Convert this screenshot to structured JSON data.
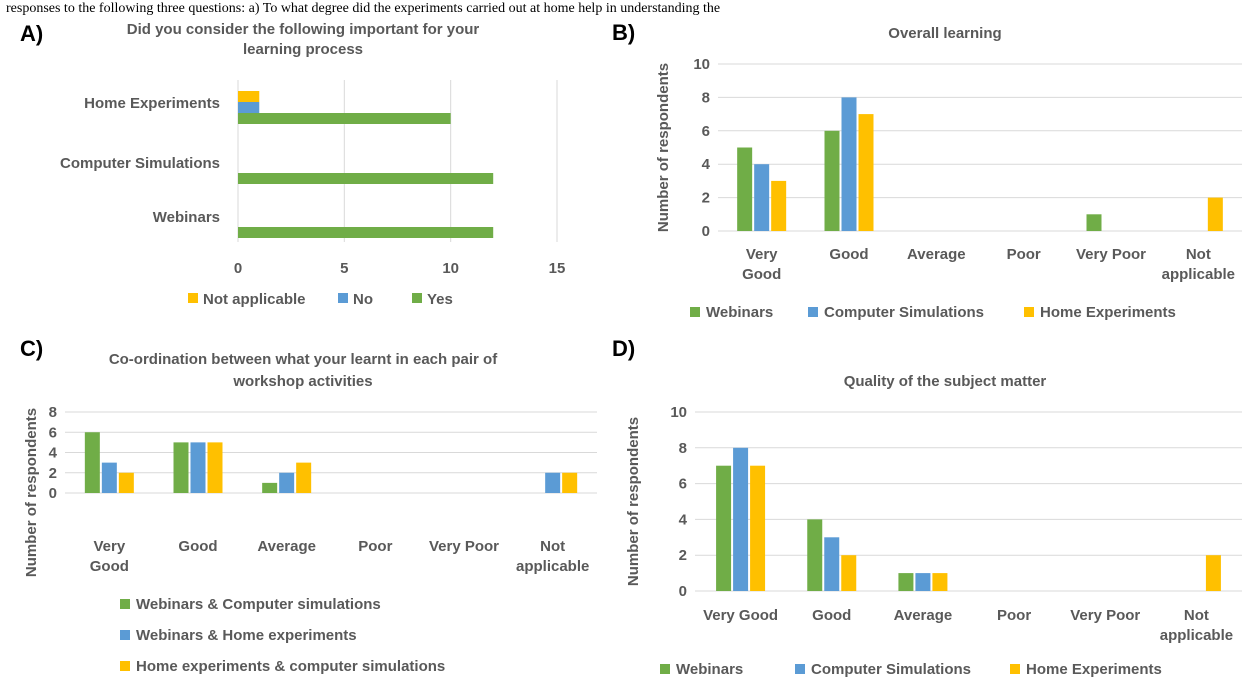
{
  "top_caption": "responses to the following three questions: a) To what degree did the experiments carried out at home help in understanding the",
  "colors": {
    "yes_webinars": "#70AD47",
    "no_comp": "#5B9BD5",
    "na_home": "#FFC000",
    "grid": "#D9D9D9",
    "text": "#595959"
  },
  "chart_data": [
    {
      "panel": "A)",
      "type": "bar",
      "orientation": "horizontal",
      "title": [
        "Did you consider the following important for your",
        "learning process"
      ],
      "categories": [
        "Home Experiments",
        "Computer Simulations",
        "Webinars"
      ],
      "series": [
        {
          "name": "Not applicable",
          "values": [
            1,
            0,
            0
          ],
          "color": "#FFC000"
        },
        {
          "name": "No",
          "values": [
            1,
            0,
            0
          ],
          "color": "#5B9BD5"
        },
        {
          "name": "Yes",
          "values": [
            10,
            12,
            12
          ],
          "color": "#70AD47"
        }
      ],
      "xlim": [
        0,
        15
      ],
      "xticks": [
        "0",
        "5",
        "10",
        "15"
      ],
      "grid": true,
      "legend": "bottom"
    },
    {
      "panel": "B)",
      "type": "bar",
      "title": [
        "Overall learning"
      ],
      "categories": [
        [
          "Very",
          "Good"
        ],
        [
          "Good"
        ],
        [
          "Average"
        ],
        [
          "Poor"
        ],
        [
          "Very Poor"
        ],
        [
          "Not",
          "applicable"
        ]
      ],
      "series": [
        {
          "name": "Webinars",
          "values": [
            5,
            6,
            0,
            0,
            1,
            0
          ],
          "color": "#70AD47"
        },
        {
          "name": "Computer Simulations",
          "values": [
            4,
            8,
            0,
            0,
            0,
            0
          ],
          "color": "#5B9BD5"
        },
        {
          "name": "Home Experiments",
          "values": [
            3,
            7,
            0,
            0,
            0,
            2
          ],
          "color": "#FFC000"
        }
      ],
      "ylabel": "Number of respondents",
      "ylim": [
        0,
        10
      ],
      "yticks": [
        "0",
        "2",
        "4",
        "6",
        "8",
        "10"
      ],
      "grid": true,
      "legend": "bottom"
    },
    {
      "panel": "C)",
      "type": "bar",
      "title": [
        "Co-ordination between what your learnt in each pair of",
        "workshop activities"
      ],
      "categories": [
        [
          "Very",
          "Good"
        ],
        [
          "Good"
        ],
        [
          "Average"
        ],
        [
          "Poor"
        ],
        [
          "Very Poor"
        ],
        [
          "Not",
          "applicable"
        ]
      ],
      "series": [
        {
          "name": "Webinars & Computer simulations",
          "values": [
            6,
            5,
            1,
            0,
            0,
            0
          ],
          "color": "#70AD47"
        },
        {
          "name": "Webinars & Home experiments",
          "values": [
            3,
            5,
            2,
            0,
            0,
            2
          ],
          "color": "#5B9BD5"
        },
        {
          "name": "Home experiments & computer simulations",
          "values": [
            2,
            5,
            3,
            0,
            0,
            2
          ],
          "color": "#FFC000"
        }
      ],
      "ylabel": "Number of respondents",
      "ylim": [
        0,
        8
      ],
      "yticks": [
        "0",
        "2",
        "4",
        "6",
        "8"
      ],
      "grid": true,
      "legend": "bottom"
    },
    {
      "panel": "D)",
      "type": "bar",
      "title": [
        "Quality of the subject matter"
      ],
      "categories": [
        [
          "Very Good"
        ],
        [
          "Good"
        ],
        [
          "Average"
        ],
        [
          "Poor"
        ],
        [
          "Very Poor"
        ],
        [
          "Not",
          "applicable"
        ]
      ],
      "series": [
        {
          "name": "Webinars",
          "values": [
            7,
            4,
            1,
            0,
            0,
            0
          ],
          "color": "#70AD47"
        },
        {
          "name": "Computer Simulations",
          "values": [
            8,
            3,
            1,
            0,
            0,
            0
          ],
          "color": "#5B9BD5"
        },
        {
          "name": "Home Experiments",
          "values": [
            7,
            2,
            1,
            0,
            0,
            2
          ],
          "color": "#FFC000"
        }
      ],
      "ylabel": "Number of respondents",
      "ylim": [
        0,
        10
      ],
      "yticks": [
        "0",
        "2",
        "4",
        "6",
        "8",
        "10"
      ],
      "grid": true,
      "legend": "bottom"
    }
  ]
}
